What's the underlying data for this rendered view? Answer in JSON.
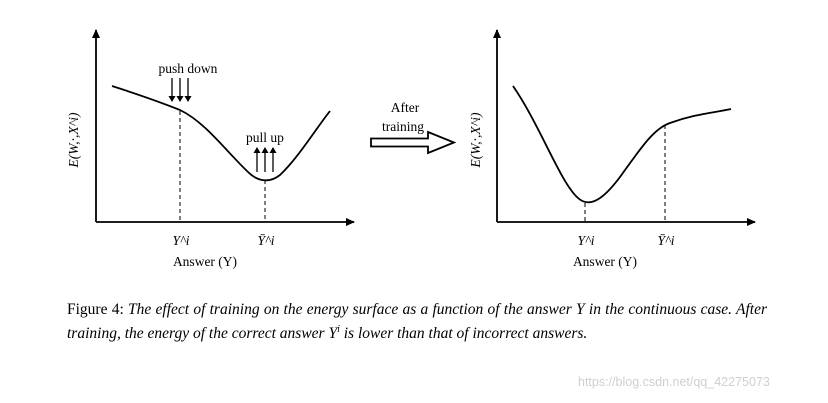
{
  "left_panel": {
    "annotation_push": "push down",
    "annotation_pull": "pull up",
    "y_axis_label": "E(W,·,X^i)",
    "x_tick_correct": "Y^i",
    "x_tick_incorrect": "Ȳ^i",
    "x_axis_label": "Answer (Y)"
  },
  "transition": {
    "line1": "After",
    "line2": "training"
  },
  "right_panel": {
    "y_axis_label": "E(W,·,X^i)",
    "x_tick_correct": "Y^i",
    "x_tick_incorrect": "Ȳ^i",
    "x_axis_label": "Answer (Y)"
  },
  "caption": {
    "label": "Figure 4:",
    "text_part1": "The effect of training on the energy surface as a function of the answer ",
    "var_y": "Y",
    "text_part2": " in the continuous case. After training, the energy of the correct answer ",
    "var_yi": "Y",
    "sup_i": "i",
    "text_part3": " is lower than that of incorrect answers."
  },
  "watermark": "https://blog.csdn.net/qq_42275073"
}
